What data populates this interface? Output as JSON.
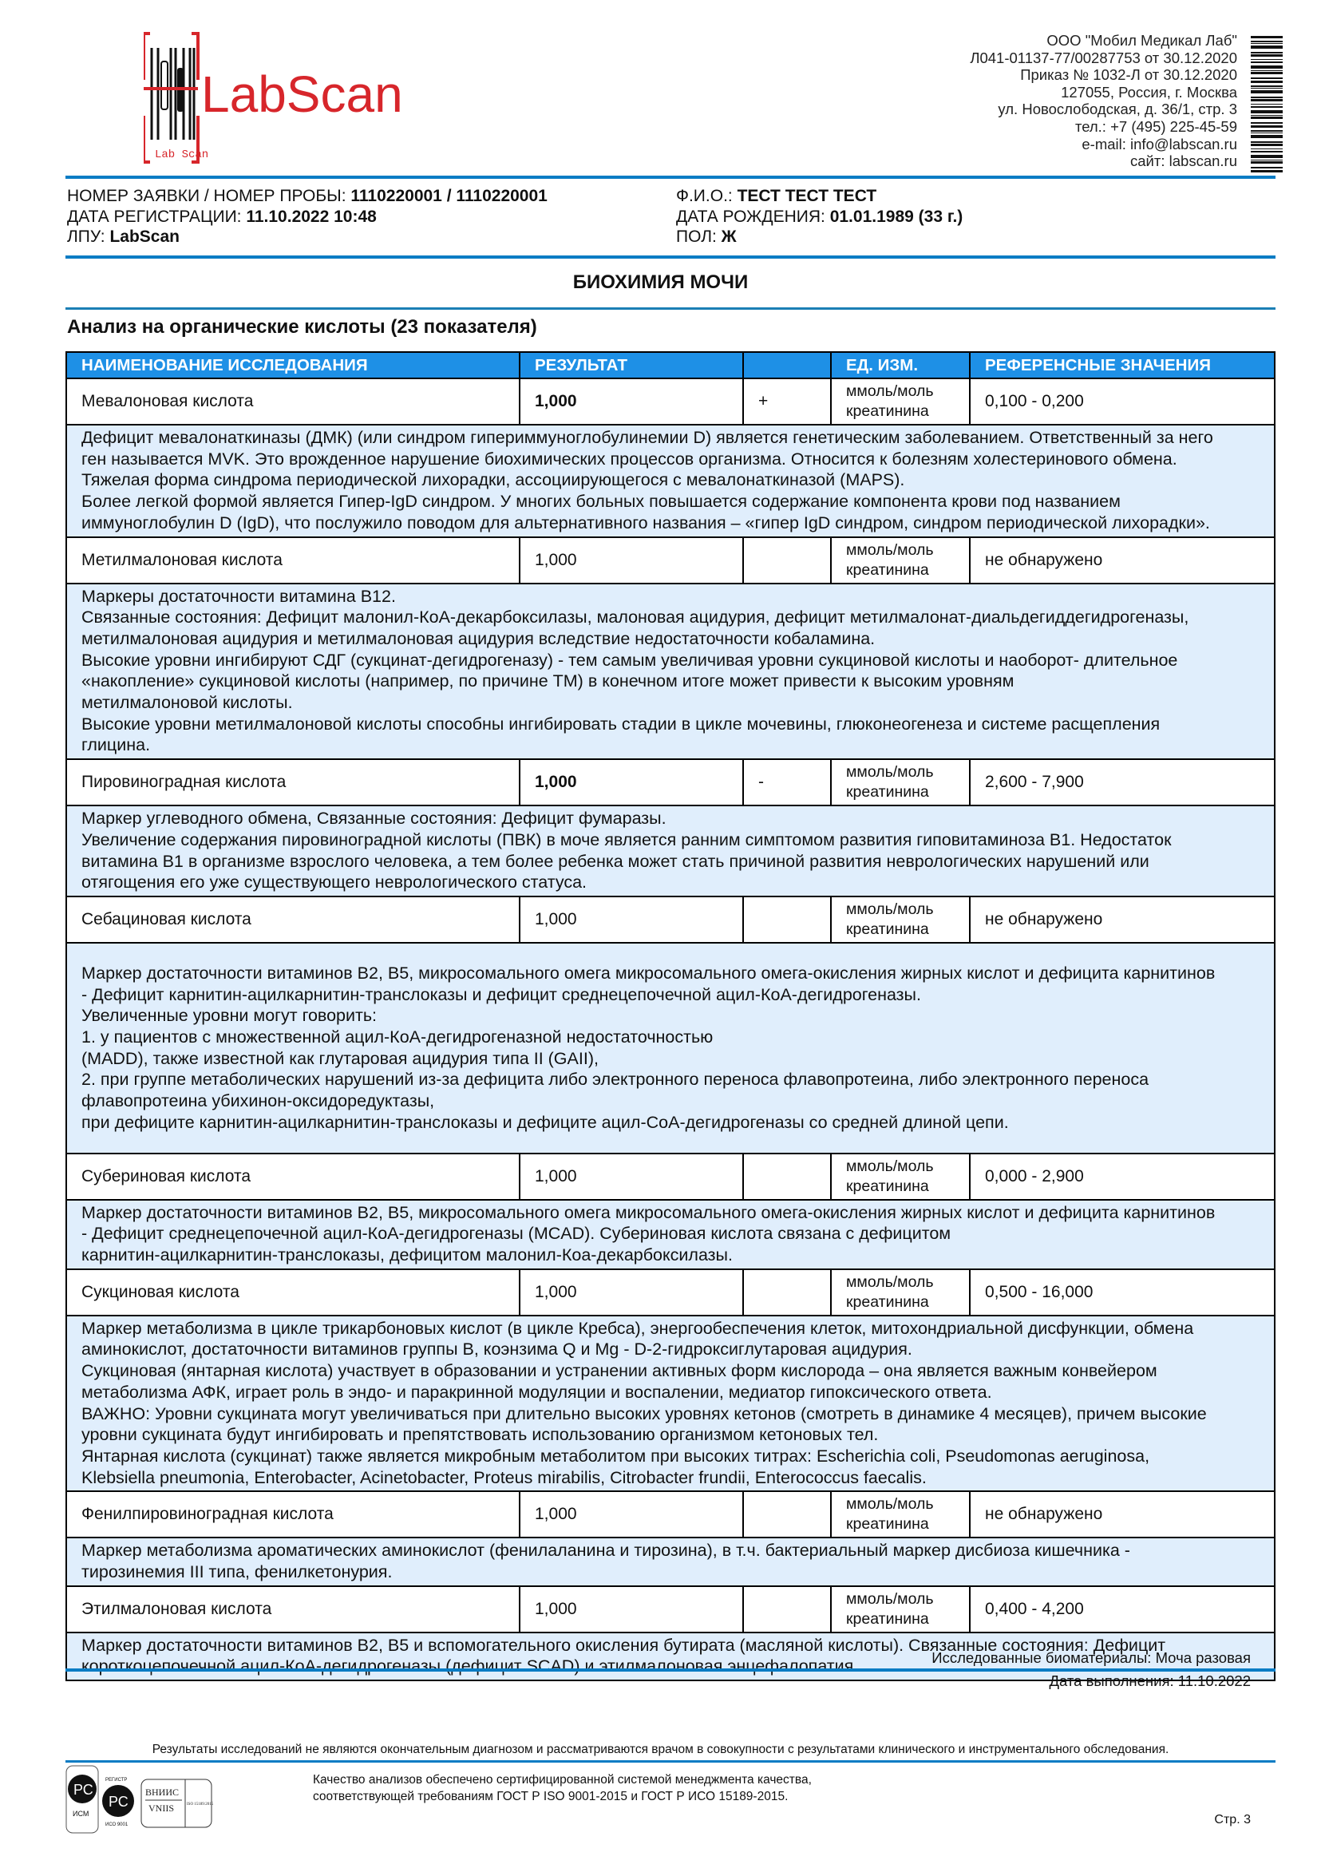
{
  "header": {
    "logo_text": "LabScan",
    "logo_sub": "Lab Scan",
    "org_lines": [
      "ООО \"Мобил Медикал Лаб\"",
      "Л041-01137-77/00287753 от 30.12.2020",
      "Приказ № 1032-Л от 30.12.2020",
      "127055, Россия, г. Москва",
      "ул. Новослободская, д. 36/1, стр. 3",
      "тел.: +7 (495) 225-45-59",
      "e-mail: info@labscan.ru",
      "сайт: labscan.ru"
    ]
  },
  "patient": {
    "order_label": "НОМЕР ЗАЯВКИ / НОМЕР ПРОБЫ: ",
    "order_value": "1110220001 / 1110220001",
    "reg_label": "ДАТА РЕГИСТРАЦИИ: ",
    "reg_value": "11.10.2022 10:48",
    "lpu_label": "ЛПУ: ",
    "lpu_value": "LabScan",
    "fio_label": "Ф.И.О.: ",
    "fio_value": "ТЕСТ ТЕСТ ТЕСТ",
    "dob_label": "ДАТА РОЖДЕНИЯ: ",
    "dob_value": "01.01.1989 (33 г.)",
    "sex_label": "ПОЛ: ",
    "sex_value": "Ж"
  },
  "section_title": "БИОХИМИЯ МОЧИ",
  "panel_title": "Анализ на органические кислоты (23 показателя)",
  "table": {
    "columns": [
      "НАИМЕНОВАНИЕ ИССЛЕДОВАНИЯ",
      "РЕЗУЛЬТАТ",
      "",
      "ЕД. ИЗМ.",
      "РЕФЕРЕНСНЫЕ ЗНАЧЕНИЯ"
    ],
    "rows": [
      {
        "name": "Мевалоновая кислота",
        "result": "1,000",
        "bold": true,
        "flag": "+",
        "unit_1": "ммоль/моль",
        "unit_2": "креатинина",
        "ref": "0,100 - 0,200",
        "desc": "Дефицит мевалонаткиназы (ДМК) (или синдром гипериммуноглобулинемии D) является генетическим заболеванием. Ответственный за него\nген называется MVK. Это врожденное нарушение биохимических процессов организма. Относится к болезням холестеринового обмена.\nТяжелая форма синдрома периодической лихорадки, ассоциирующегося с мевалонаткиназой (MAPS).\nБолее легкой формой является Гипер-IgD синдром. У многих больных повышается содержание компонента крови под названием\nиммуноглобулин D (IgD), что послужило поводом для альтернативного названия – «гипер IgD синдром, синдром периодической лихорадки»."
      },
      {
        "name": "Метилмалоновая кислота",
        "result": "1,000",
        "bold": false,
        "flag": "",
        "unit_1": "ммоль/моль",
        "unit_2": "креатинина",
        "ref": "не обнаружено",
        "desc": "Маркеры достаточности витамина В12.\nСвязанные состояния: Дефицит малонил-КоА-декарбоксилазы, малоновая ацидурия, дефицит метилмалонат-диальдегиддегидрогеназы,\nметилмалоновая ацидурия и метилмалоновая ацидурия вследствие недостаточности кобаламина.\nВысокие уровни ингибируют СДГ (сукцинат-дегидрогеназу) - тем самым увеличивая уровни сукциновой кислоты и наоборот- длительное\n«накопление» сукциновой кислоты (например, по причине ТМ) в конечном итоге может привести к высоким уровням\nметилмалоновой кислоты.\nВысокие уровни метилмалоновой кислоты способны ингибировать стадии в цикле мочевины, глюконеогенеза и системе расщепления\nглицина."
      },
      {
        "name": "Пировиноградная кислота",
        "result": "1,000",
        "bold": true,
        "flag": "-",
        "unit_1": "ммоль/моль",
        "unit_2": "креатинина",
        "ref": "2,600 - 7,900",
        "desc": "Маркер углеводного обмена, Связанные состояния: Дефицит фумаразы.\nУвеличение содержания пировиноградной кислоты (ПВК) в моче является ранним симптомом развития гиповитаминоза В1. Недостаток\nвитамина В1 в организме взрослого человека, а тем более ребенка может стать причиной развития неврологических нарушений или\nотягощения его уже существующего неврологического статуса."
      },
      {
        "name": "Себациновая кислота",
        "result": "1,000",
        "bold": false,
        "flag": "",
        "unit_1": "ммоль/моль",
        "unit_2": "креатинина",
        "ref": "не обнаружено",
        "tall": true,
        "desc": "Маркер достаточности витаминов В2, В5, микросомального омега микросомального омега-окисления жирных кислот и дефицита карнитинов\n- Дефицит карнитин-ацилкарнитин-транслоказы и дефицит среднецепочечной ацил-КоА-дегидрогеназы.\nУвеличенные уровни могут говорить:\n1. у пациентов с множественной ацил-КоА-дегидрогеназной недостаточностью\n(MADD), также известной как глутаровая ацидурия типа II (GAII),\n2. при группе метаболических нарушений из-за дефицита либо электронного переноса флавопротеина, либо электронного переноса\nфлавопротеина убихинон-оксидоредуктазы,\nпри дефиците карнитин-ацилкарнитин-транслоказы и дефиците ацил-СоА-дегидрогеназы со средней длиной цепи."
      },
      {
        "name": "Субериновая кислота",
        "result": "1,000",
        "bold": false,
        "flag": "",
        "unit_1": "ммоль/моль",
        "unit_2": "креатинина",
        "ref": "0,000 - 2,900",
        "desc": "Маркер достаточности витаминов В2, В5, микросомального омега микросомального омега-окисления жирных кислот и дефицита карнитинов\n- Дефицит среднецепочечной ацил-КоА-дегидрогеназы (MCAD). Субериновая кислота связана с дефицитом\nкарнитин-ацилкарнитин-транслоказы, дефицитом малонил-Коа-декарбоксилазы."
      },
      {
        "name": "Сукциновая кислота",
        "result": "1,000",
        "bold": false,
        "flag": "",
        "unit_1": "ммоль/моль",
        "unit_2": "креатинина",
        "ref": "0,500 - 16,000",
        "desc": "Маркер метаболизма в цикле трикарбоновых кислот (в цикле Кребса), энергообеспечения клеток, митохондриальной дисфункции, обмена\nаминокислот, достаточности витаминов группы В, коэнзима Q и Mg - D-2-гидроксиглутаровая ацидурия.\nСукциновая (янтарная кислота) участвует в образовании и устранении активных форм кислорода – она является важным конвейером\nметаболизма АФК, играет роль в эндо- и паракринной модуляции и воспалении, медиатор гипоксического ответа.\nВАЖНО: Уровни сукцината могут увеличиваться при длительно высоких уровнях кетонов (смотреть в динамике 4 месяцев), причем высокие\nуровни сукцината будут ингибировать и препятствовать использованию организмом кетоновых тел.\nЯнтарная кислота (сукцинат) также является микробным метаболитом при высоких титрах: Escherichia coli, Pseudomonas aeruginosa,\nKlebsiella pneumonia, Enterobacter, Acinetobacter, Proteus mirabilis, Citrobacter frundii, Enterococcus faecalis."
      },
      {
        "name": "Фенилпировиноградная кислота",
        "result": "1,000",
        "bold": false,
        "flag": "",
        "unit_1": "ммоль/моль",
        "unit_2": "креатинина",
        "ref": "не обнаружено",
        "desc": "Маркер метаболизма ароматических аминокислот (фенилаланина и тирозина), в т.ч. бактериальный маркер дисбиоза кишечника -\nтирозинемия III типа, фенилкетонурия."
      },
      {
        "name": "Этилмалоновая кислота",
        "result": "1,000",
        "bold": false,
        "flag": "",
        "unit_1": "ммоль/моль",
        "unit_2": "креатинина",
        "ref": "0,400 - 4,200",
        "desc": "Маркер достаточности витаминов В2, В5 и вспомогательного окисления бутирата (масляной кислоты). Связанные состояния: Дефицит\nкороткоцепочечной ацил-КоА-дегидрогеназы (дефицит SCAD) и этилмалоновая энцефалопатия."
      }
    ]
  },
  "footer": {
    "biomaterial": "Исследованные биоматериалы: Моча разовая",
    "date_done": "Дата выполнения: 11.10.2022",
    "disclaimer": "Результаты исследований не являются окончательным диагнозом и рассматриваются врачом в совокупности с результатами клинического и инструментального обследования.",
    "quality_1": "Качество анализов обеспечено сертифицированной системой менеджмента качества,",
    "quality_2": "соответствующей требованиям ГОСТ Р ISO 9001-2015 и ГОСТ Р ИСО 15189-2015.",
    "page": "Стр. 3",
    "cert_labels": [
      "ИСМ",
      "РЕГИСТР",
      "ИСО 9001",
      "ВНИИС",
      "VNIIS",
      "ISO 15189:2015"
    ]
  },
  "colors": {
    "brand_red": "#d7262b",
    "accent_blue": "#0a7cc4",
    "header_blue": "#1e90e6",
    "desc_bg": "#e0eefc"
  }
}
